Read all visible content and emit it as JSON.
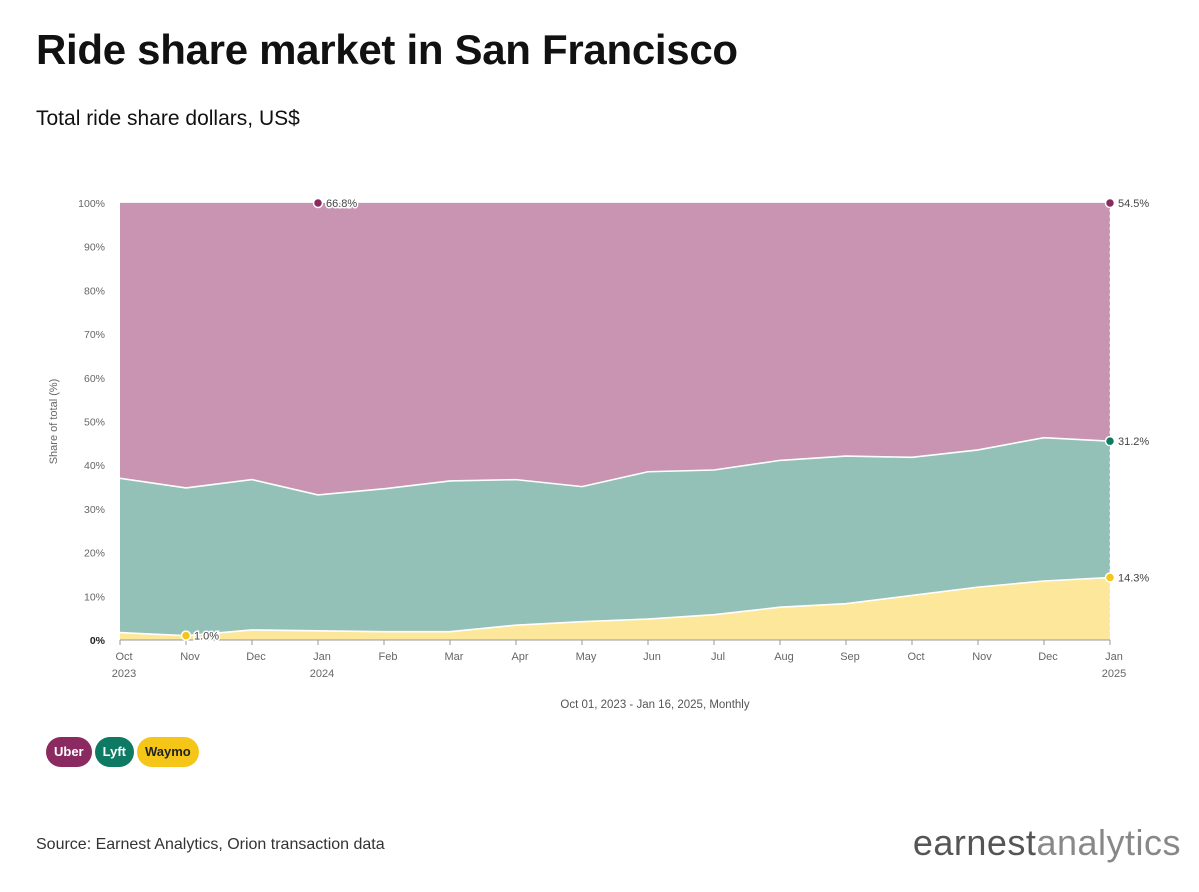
{
  "header": {
    "title": "Ride share market in San Francisco",
    "subtitle": "Total ride share dollars, US$"
  },
  "chart_data": {
    "type": "area",
    "stacked": true,
    "ylabel": "Share of total (%)",
    "xlabel": "Oct 01, 2023 - Jan 16, 2025, Monthly",
    "ylim": [
      0,
      100
    ],
    "yticks": [
      "0%",
      "10%",
      "20%",
      "30%",
      "40%",
      "50%",
      "60%",
      "70%",
      "80%",
      "90%",
      "100%"
    ],
    "categories": [
      {
        "month": "Oct",
        "year": "2023"
      },
      {
        "month": "Nov",
        "year": ""
      },
      {
        "month": "Dec",
        "year": ""
      },
      {
        "month": "Jan",
        "year": "2024"
      },
      {
        "month": "Feb",
        "year": ""
      },
      {
        "month": "Mar",
        "year": ""
      },
      {
        "month": "Apr",
        "year": ""
      },
      {
        "month": "May",
        "year": ""
      },
      {
        "month": "Jun",
        "year": ""
      },
      {
        "month": "Jul",
        "year": ""
      },
      {
        "month": "Aug",
        "year": ""
      },
      {
        "month": "Sep",
        "year": ""
      },
      {
        "month": "Oct",
        "year": ""
      },
      {
        "month": "Nov",
        "year": ""
      },
      {
        "month": "Dec",
        "year": ""
      },
      {
        "month": "Jan",
        "year": "2025"
      }
    ],
    "series": [
      {
        "name": "Waymo",
        "color": "#f5c518",
        "fill": "#fde79a",
        "values": [
          1.7,
          1.0,
          2.3,
          2.1,
          1.9,
          1.9,
          3.4,
          4.2,
          4.8,
          5.8,
          7.5,
          8.3,
          10.2,
          12.1,
          13.5,
          14.3
        ]
      },
      {
        "name": "Lyft",
        "color": "#0f7a63",
        "fill": "#93c1b7",
        "values": [
          35.3,
          33.8,
          34.4,
          31.1,
          32.7,
          34.5,
          33.3,
          30.9,
          33.7,
          33.1,
          33.6,
          33.8,
          31.6,
          31.4,
          32.8,
          31.2
        ]
      },
      {
        "name": "Uber",
        "color": "#8b2a61",
        "fill": "#c894b1",
        "values": [
          63.0,
          65.2,
          63.3,
          66.8,
          65.4,
          63.6,
          63.3,
          64.9,
          61.5,
          61.1,
          58.9,
          57.9,
          58.2,
          56.5,
          53.7,
          54.5
        ]
      }
    ],
    "annotations": [
      {
        "series": "Uber",
        "index": 3,
        "text": "66.8%"
      },
      {
        "series": "Uber",
        "index": 15,
        "text": "54.5%"
      },
      {
        "series": "Lyft",
        "index": 15,
        "text": "31.2%"
      },
      {
        "series": "Waymo",
        "index": 15,
        "text": "14.3%"
      },
      {
        "series": "Waymo",
        "index": 1,
        "text": "1.0%"
      }
    ]
  },
  "legend": {
    "items": [
      {
        "label": "Uber",
        "color": "#8b2a61"
      },
      {
        "label": "Lyft",
        "color": "#0f7a63"
      },
      {
        "label": "Waymo",
        "color": "#f5c518"
      }
    ]
  },
  "footer": {
    "source": "Source: Earnest Analytics, Orion transaction data",
    "logo_part1": "earnest",
    "logo_part2": "analytics"
  }
}
